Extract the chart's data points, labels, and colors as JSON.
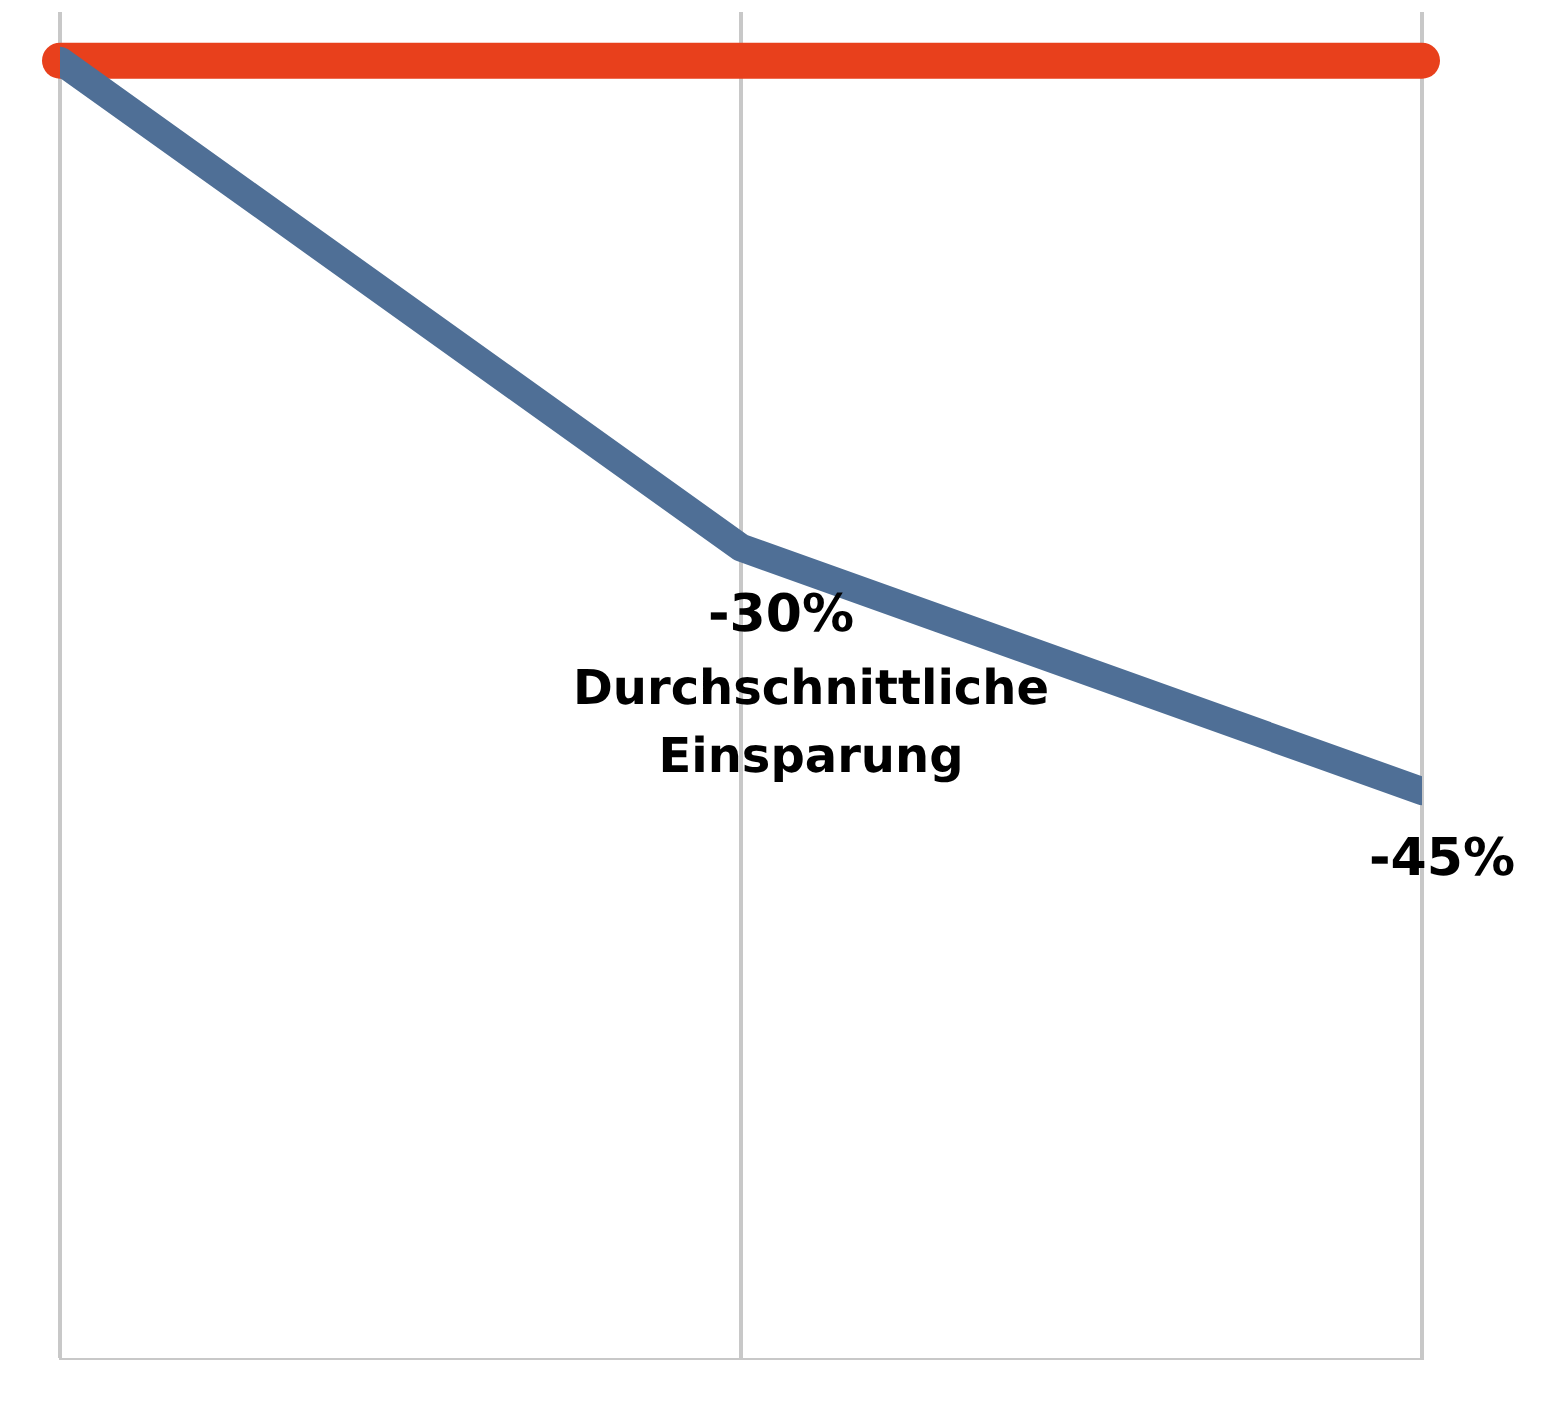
{
  "chart_data": {
    "type": "line",
    "categories": [
      null,
      null,
      null
    ],
    "series": [
      {
        "color": "#4f6f96",
        "values": [
          0,
          -30,
          -45
        ],
        "value_labels": [
          null,
          "-30%",
          "-45%"
        ]
      }
    ],
    "ylim": [
      -80,
      3
    ],
    "grid": "x",
    "legend": false,
    "marker": "none",
    "line_style": "solid",
    "ref_lines": [
      {
        "axis": "y",
        "value": 0,
        "color": "#e8401c"
      }
    ],
    "annotations": [
      "Durchschnittliche Einsparung"
    ]
  }
}
